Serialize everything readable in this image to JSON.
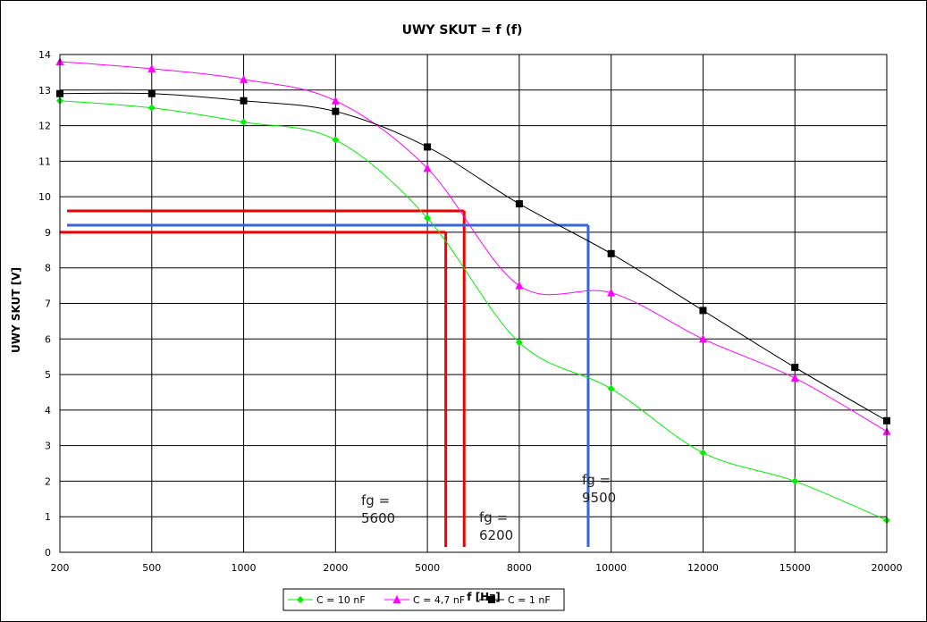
{
  "chart_data": {
    "type": "line",
    "title": "UWY SKUT = f (f)",
    "xlabel": "f [Hz]",
    "ylabel": "UWY SKUT [V]",
    "x_scale": "categorical",
    "categories": [
      "200",
      "500",
      "1000",
      "2000",
      "5000",
      "8000",
      "10000",
      "12000",
      "15000",
      "20000"
    ],
    "ylim": [
      0,
      14
    ],
    "yticks": [
      "0",
      "1",
      "2",
      "3",
      "4",
      "5",
      "6",
      "7",
      "8",
      "9",
      "10",
      "11",
      "12",
      "13",
      "14"
    ],
    "grid": true,
    "legend_position": "bottom",
    "series": [
      {
        "name": "C = 10 nF",
        "color": "#00ee00",
        "marker": "diamond",
        "values": [
          12.7,
          12.5,
          12.1,
          11.6,
          9.4,
          5.9,
          4.6,
          2.8,
          2.0,
          0.9
        ]
      },
      {
        "name": "C = 4,7 nF",
        "color": "#ff00ff",
        "marker": "triangle",
        "values": [
          13.8,
          13.6,
          13.3,
          12.7,
          10.8,
          7.5,
          7.3,
          6.0,
          4.9,
          3.4
        ]
      },
      {
        "name": "C = 1 nF",
        "color": "#000000",
        "marker": "square",
        "values": [
          12.9,
          12.9,
          12.7,
          12.4,
          11.4,
          9.8,
          8.4,
          6.8,
          5.2,
          3.7
        ]
      }
    ],
    "annotations": [
      {
        "text_line1": "fg =",
        "text_line2": "5600",
        "color": "#ee0000",
        "x_frequency": 5600,
        "y_level": 9.0
      },
      {
        "text_line1": "fg =",
        "text_line2": "6200",
        "color": "#ee0000",
        "x_frequency": 6200,
        "y_level": 9.6
      },
      {
        "text_line1": "fg =",
        "text_line2": "9500",
        "color": "#3366dd",
        "x_frequency": 9500,
        "y_level": 9.2
      }
    ]
  }
}
